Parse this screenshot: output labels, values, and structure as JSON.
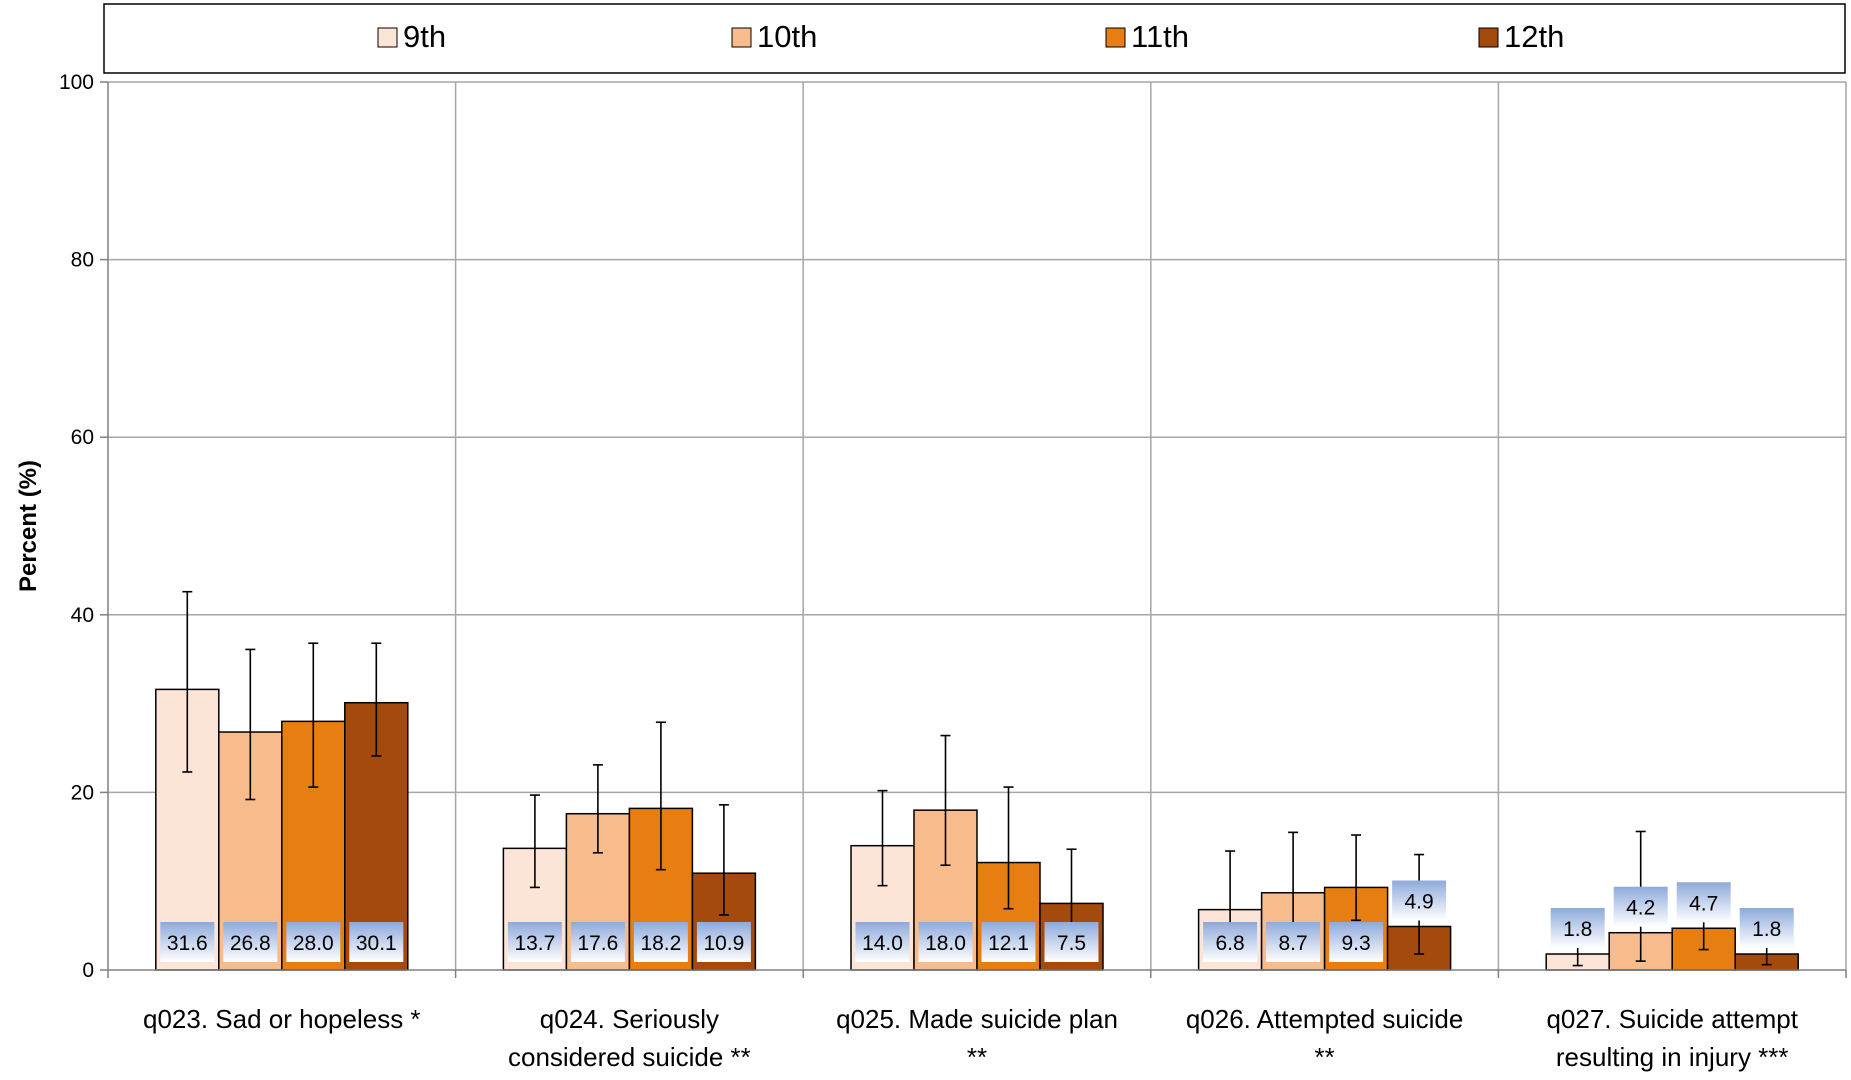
{
  "chart_data": {
    "type": "bar",
    "title": "",
    "xlabel": "",
    "ylabel": "Percent (%)",
    "ylim": [
      0,
      100
    ],
    "yticks": [
      0,
      20,
      40,
      60,
      80,
      100
    ],
    "grid": true,
    "legend_position": "top",
    "categories": [
      [
        "q023. Sad or hopeless *"
      ],
      [
        "q024. Seriously",
        "considered suicide **"
      ],
      [
        "q025. Made suicide plan",
        "**"
      ],
      [
        "q026. Attempted suicide",
        "**"
      ],
      [
        "q027. Suicide attempt",
        "resulting in injury ***"
      ]
    ],
    "series": [
      {
        "name": "9th",
        "color": "#fce4d6",
        "values": [
          31.6,
          13.7,
          14.0,
          6.8,
          1.8
        ],
        "err_low": [
          22.3,
          9.3,
          9.5,
          3.4,
          0.5
        ],
        "err_high": [
          42.6,
          19.7,
          20.2,
          13.4,
          3.0
        ]
      },
      {
        "name": "10th",
        "color": "#f8bb8c",
        "values": [
          26.8,
          17.6,
          18.0,
          8.7,
          4.2
        ],
        "err_low": [
          19.2,
          13.2,
          11.8,
          4.9,
          1.0
        ],
        "err_high": [
          36.1,
          23.1,
          26.4,
          15.5,
          15.6
        ]
      },
      {
        "name": "11th",
        "color": "#e67e12",
        "values": [
          28.0,
          18.2,
          12.1,
          9.3,
          4.7
        ],
        "err_low": [
          20.6,
          11.3,
          6.9,
          5.6,
          2.3
        ],
        "err_high": [
          36.8,
          27.9,
          20.6,
          15.2,
          7.4
        ]
      },
      {
        "name": "12th",
        "color": "#a34a0c",
        "values": [
          30.1,
          10.9,
          7.5,
          4.9,
          1.8
        ],
        "err_low": [
          24.1,
          6.2,
          3.6,
          1.8,
          0.6
        ],
        "err_high": [
          36.8,
          18.6,
          13.6,
          13.0,
          3.0
        ]
      }
    ],
    "data_labels": [
      [
        "31.6",
        "26.8",
        "28.0",
        "30.1"
      ],
      [
        "13.7",
        "17.6",
        "18.2",
        "10.9"
      ],
      [
        "14.0",
        "18.0",
        "12.1",
        "7.5"
      ],
      [
        "6.8",
        "8.7",
        "9.3",
        "4.9"
      ],
      [
        "1.8",
        "4.2",
        "4.7",
        "1.8"
      ]
    ]
  }
}
